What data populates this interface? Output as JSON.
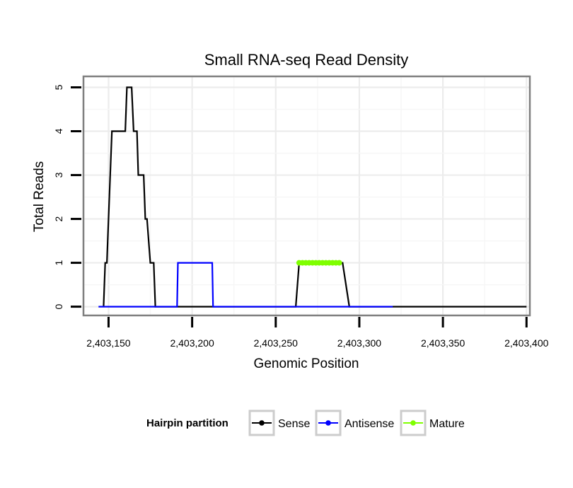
{
  "chart_data": {
    "type": "line",
    "title": "Small RNA-seq Read Density",
    "xlabel": "Genomic Position",
    "ylabel": "Total Reads",
    "xlim": [
      2403135,
      2403402
    ],
    "ylim": [
      -0.2,
      5.25
    ],
    "x_ticks": [
      2403150,
      2403200,
      2403250,
      2403300,
      2403350,
      2403400
    ],
    "x_tick_labels": [
      "2,403,150",
      "2,403,200",
      "2,403,250",
      "2,403,300",
      "2,403,350",
      "2,403,400"
    ],
    "y_ticks": [
      0,
      1,
      2,
      3,
      4,
      5
    ],
    "y_tick_labels": [
      "0",
      "1",
      "2",
      "3",
      "4",
      "5"
    ],
    "grid": true,
    "legend": {
      "title": "Hairpin partition",
      "position": "bottom",
      "entries": [
        "Sense",
        "Antisense",
        "Mature"
      ]
    },
    "series": [
      {
        "name": "Sense",
        "color": "#000000",
        "x": [
          2403147,
          2403148,
          2403149,
          2403150,
          2403151,
          2403152,
          2403153,
          2403157,
          2403158,
          2403159,
          2403160,
          2403161,
          2403162,
          2403163,
          2403163.8,
          2403165,
          2403166,
          2403167,
          2403167.8,
          2403168,
          2403168.8,
          2403170,
          2403171,
          2403172,
          2403173,
          2403175,
          2403176,
          2403177,
          2403178,
          2403180,
          2403181,
          2403182,
          2403183,
          2403187,
          2403188,
          2403220,
          2403250,
          2403262,
          2403264,
          2403290,
          2403294,
          2403320,
          2403360,
          2403400
        ],
        "values": [
          0,
          1,
          1,
          2,
          3,
          4,
          4,
          4,
          4,
          4,
          4,
          5,
          5,
          5,
          5,
          4,
          4,
          4,
          3,
          3,
          3,
          3,
          3,
          2,
          2,
          1,
          1,
          1,
          0,
          0,
          0,
          0,
          0,
          0,
          0,
          0,
          0,
          0,
          1,
          1,
          0,
          0,
          0,
          0
        ]
      },
      {
        "name": "Antisense",
        "color": "#0000ff",
        "x": [
          2403144,
          2403191,
          2403191.5,
          2403212,
          2403212.5,
          2403264,
          2403288,
          2403288.5,
          2403320
        ],
        "values": [
          0,
          0,
          1,
          1,
          0,
          0,
          0,
          0,
          0
        ]
      },
      {
        "name": "Mature",
        "color": "#7fff00",
        "x": [
          2403264,
          2403266,
          2403268,
          2403270,
          2403272,
          2403274,
          2403276,
          2403278,
          2403280,
          2403282,
          2403284,
          2403286,
          2403288
        ],
        "values": [
          1,
          1,
          1,
          1,
          1,
          1,
          1,
          1,
          1,
          1,
          1,
          1,
          1
        ]
      }
    ]
  }
}
